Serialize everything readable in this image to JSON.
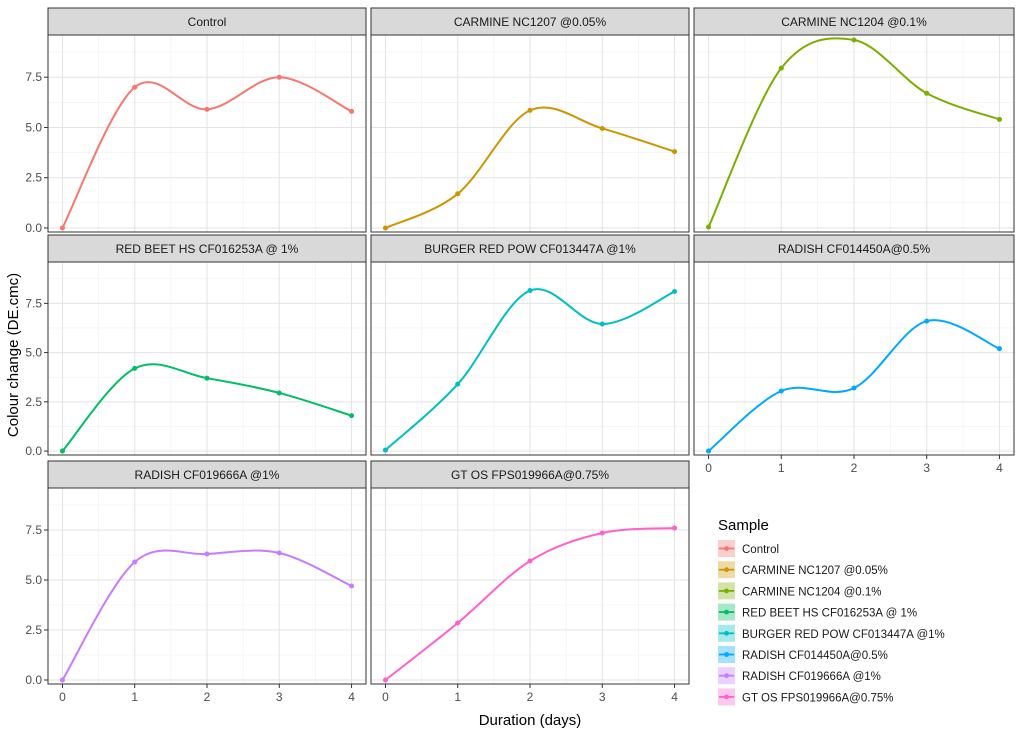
{
  "chart_data": {
    "type": "line",
    "xlabel": "Duration (days)",
    "ylabel": "Colour change (DE.cmc)",
    "xlim": [
      -0.2,
      4.2
    ],
    "ylim": [
      -0.2,
      9.6
    ],
    "xticks": [
      0,
      1,
      2,
      3,
      4
    ],
    "xtick_labels": [
      "0",
      "1",
      "2",
      "3",
      "4"
    ],
    "yticks": [
      0,
      2.5,
      5,
      7.5
    ],
    "ytick_labels": [
      "0.0",
      "2.5",
      "5.0",
      "7.5"
    ],
    "grid": true,
    "legend": {
      "title": "Sample",
      "position": "bottom-right"
    },
    "x": [
      0,
      1,
      2,
      3,
      4
    ],
    "series": [
      {
        "name": "Control",
        "color": "#F8766D",
        "values": [
          0.0,
          7.0,
          5.9,
          7.5,
          5.8
        ]
      },
      {
        "name": "CARMINE NC1207 @0.05%",
        "color": "#CD9600",
        "values": [
          0.0,
          1.7,
          5.85,
          4.95,
          3.8
        ]
      },
      {
        "name": "CARMINE NC1204 @0.1%",
        "color": "#7CAE00",
        "values": [
          0.05,
          7.95,
          9.35,
          6.7,
          5.4
        ]
      },
      {
        "name": "RED BEET HS CF016253A @ 1%",
        "color": "#00BE67",
        "values": [
          0.0,
          4.2,
          3.7,
          2.95,
          1.8
        ]
      },
      {
        "name": "BURGER RED POW CF013447A @1%",
        "color": "#00BFC4",
        "values": [
          0.05,
          3.4,
          8.15,
          6.45,
          8.1
        ]
      },
      {
        "name": "RADISH CF014450A@0.5%",
        "color": "#00A9FF",
        "values": [
          0.0,
          3.05,
          3.2,
          6.6,
          5.2
        ]
      },
      {
        "name": "RADISH CF019666A @1%",
        "color": "#C77CFF",
        "values": [
          0.0,
          5.9,
          6.3,
          6.35,
          4.7
        ]
      },
      {
        "name": "GT OS FPS019966A@0.75%",
        "color": "#FF61CC",
        "values": [
          0.0,
          2.85,
          5.95,
          7.35,
          7.6
        ]
      }
    ],
    "panels": [
      {
        "title": "Control",
        "series_index": 0
      },
      {
        "title": "CARMINE NC1207 @0.05%",
        "series_index": 1
      },
      {
        "title": "CARMINE NC1204 @0.1%",
        "series_index": 2
      },
      {
        "title": "RED BEET HS CF016253A @ 1%",
        "series_index": 3
      },
      {
        "title": "BURGER RED POW CF013447A @1%",
        "series_index": 4
      },
      {
        "title": "RADISH CF014450A@0.5%",
        "series_index": 5
      },
      {
        "title": "RADISH CF019666A @1%",
        "series_index": 6
      },
      {
        "title": "GT OS FPS019966A@0.75%",
        "series_index": 7
      }
    ]
  }
}
